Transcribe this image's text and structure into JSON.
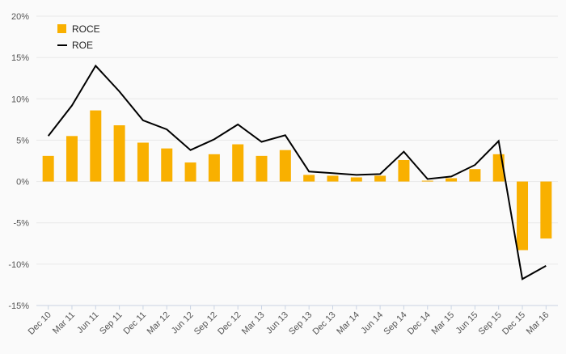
{
  "chart_data": {
    "type": "bar",
    "title": "",
    "xlabel": "",
    "ylabel": "",
    "categories": [
      "Dec 10",
      "Mar 11",
      "Jun 11",
      "Sep 11",
      "Dec 11",
      "Mar 12",
      "Jun 12",
      "Sep 12",
      "Dec 12",
      "Mar 13",
      "Jun 13",
      "Sep 13",
      "Dec 13",
      "Mar 14",
      "Jun 14",
      "Sep 14",
      "Dec 14",
      "Mar 15",
      "Jun 15",
      "Sep 15",
      "Dec 15",
      "Mar 16"
    ],
    "ylim": [
      -15,
      20
    ],
    "yticks": [
      20,
      15,
      10,
      5,
      0,
      -5,
      -10,
      -15
    ],
    "ytick_labels": [
      "20%",
      "15%",
      "10%",
      "5%",
      "0%",
      "-5%",
      "-10%",
      "-15%"
    ],
    "grid": true,
    "legend_position": "top-left",
    "series": [
      {
        "name": "ROCE",
        "type": "bar",
        "color": "#f9b000",
        "values": [
          3.1,
          5.5,
          8.6,
          6.8,
          4.7,
          4.0,
          2.3,
          3.3,
          4.5,
          3.1,
          3.8,
          0.8,
          0.7,
          0.5,
          0.7,
          2.6,
          0.1,
          0.4,
          1.5,
          3.3,
          -8.3,
          -6.9
        ]
      },
      {
        "name": "ROE",
        "type": "line",
        "color": "#000000",
        "values": [
          5.5,
          9.2,
          14.0,
          10.9,
          7.4,
          6.3,
          3.8,
          5.1,
          6.9,
          4.8,
          5.6,
          1.2,
          1.0,
          0.8,
          0.9,
          3.6,
          0.3,
          0.6,
          2.0,
          4.9,
          -11.8,
          -10.2
        ]
      }
    ]
  }
}
